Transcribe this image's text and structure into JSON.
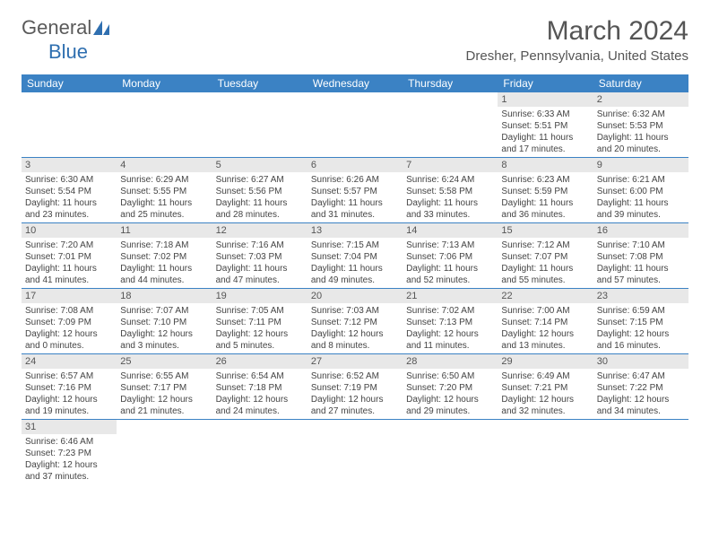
{
  "logo": {
    "text_dark": "General",
    "text_blue": "Blue"
  },
  "title": "March 2024",
  "location": "Dresher, Pennsylvania, United States",
  "colors": {
    "header_bg": "#3b82c4",
    "header_text": "#ffffff",
    "daynum_bg": "#e8e8e8",
    "border": "#3b82c4",
    "title_color": "#555555"
  },
  "day_names": [
    "Sunday",
    "Monday",
    "Tuesday",
    "Wednesday",
    "Thursday",
    "Friday",
    "Saturday"
  ],
  "weeks": [
    [
      null,
      null,
      null,
      null,
      null,
      {
        "n": "1",
        "sr": "Sunrise: 6:33 AM",
        "ss": "Sunset: 5:51 PM",
        "d1": "Daylight: 11 hours",
        "d2": "and 17 minutes."
      },
      {
        "n": "2",
        "sr": "Sunrise: 6:32 AM",
        "ss": "Sunset: 5:53 PM",
        "d1": "Daylight: 11 hours",
        "d2": "and 20 minutes."
      }
    ],
    [
      {
        "n": "3",
        "sr": "Sunrise: 6:30 AM",
        "ss": "Sunset: 5:54 PM",
        "d1": "Daylight: 11 hours",
        "d2": "and 23 minutes."
      },
      {
        "n": "4",
        "sr": "Sunrise: 6:29 AM",
        "ss": "Sunset: 5:55 PM",
        "d1": "Daylight: 11 hours",
        "d2": "and 25 minutes."
      },
      {
        "n": "5",
        "sr": "Sunrise: 6:27 AM",
        "ss": "Sunset: 5:56 PM",
        "d1": "Daylight: 11 hours",
        "d2": "and 28 minutes."
      },
      {
        "n": "6",
        "sr": "Sunrise: 6:26 AM",
        "ss": "Sunset: 5:57 PM",
        "d1": "Daylight: 11 hours",
        "d2": "and 31 minutes."
      },
      {
        "n": "7",
        "sr": "Sunrise: 6:24 AM",
        "ss": "Sunset: 5:58 PM",
        "d1": "Daylight: 11 hours",
        "d2": "and 33 minutes."
      },
      {
        "n": "8",
        "sr": "Sunrise: 6:23 AM",
        "ss": "Sunset: 5:59 PM",
        "d1": "Daylight: 11 hours",
        "d2": "and 36 minutes."
      },
      {
        "n": "9",
        "sr": "Sunrise: 6:21 AM",
        "ss": "Sunset: 6:00 PM",
        "d1": "Daylight: 11 hours",
        "d2": "and 39 minutes."
      }
    ],
    [
      {
        "n": "10",
        "sr": "Sunrise: 7:20 AM",
        "ss": "Sunset: 7:01 PM",
        "d1": "Daylight: 11 hours",
        "d2": "and 41 minutes."
      },
      {
        "n": "11",
        "sr": "Sunrise: 7:18 AM",
        "ss": "Sunset: 7:02 PM",
        "d1": "Daylight: 11 hours",
        "d2": "and 44 minutes."
      },
      {
        "n": "12",
        "sr": "Sunrise: 7:16 AM",
        "ss": "Sunset: 7:03 PM",
        "d1": "Daylight: 11 hours",
        "d2": "and 47 minutes."
      },
      {
        "n": "13",
        "sr": "Sunrise: 7:15 AM",
        "ss": "Sunset: 7:04 PM",
        "d1": "Daylight: 11 hours",
        "d2": "and 49 minutes."
      },
      {
        "n": "14",
        "sr": "Sunrise: 7:13 AM",
        "ss": "Sunset: 7:06 PM",
        "d1": "Daylight: 11 hours",
        "d2": "and 52 minutes."
      },
      {
        "n": "15",
        "sr": "Sunrise: 7:12 AM",
        "ss": "Sunset: 7:07 PM",
        "d1": "Daylight: 11 hours",
        "d2": "and 55 minutes."
      },
      {
        "n": "16",
        "sr": "Sunrise: 7:10 AM",
        "ss": "Sunset: 7:08 PM",
        "d1": "Daylight: 11 hours",
        "d2": "and 57 minutes."
      }
    ],
    [
      {
        "n": "17",
        "sr": "Sunrise: 7:08 AM",
        "ss": "Sunset: 7:09 PM",
        "d1": "Daylight: 12 hours",
        "d2": "and 0 minutes."
      },
      {
        "n": "18",
        "sr": "Sunrise: 7:07 AM",
        "ss": "Sunset: 7:10 PM",
        "d1": "Daylight: 12 hours",
        "d2": "and 3 minutes."
      },
      {
        "n": "19",
        "sr": "Sunrise: 7:05 AM",
        "ss": "Sunset: 7:11 PM",
        "d1": "Daylight: 12 hours",
        "d2": "and 5 minutes."
      },
      {
        "n": "20",
        "sr": "Sunrise: 7:03 AM",
        "ss": "Sunset: 7:12 PM",
        "d1": "Daylight: 12 hours",
        "d2": "and 8 minutes."
      },
      {
        "n": "21",
        "sr": "Sunrise: 7:02 AM",
        "ss": "Sunset: 7:13 PM",
        "d1": "Daylight: 12 hours",
        "d2": "and 11 minutes."
      },
      {
        "n": "22",
        "sr": "Sunrise: 7:00 AM",
        "ss": "Sunset: 7:14 PM",
        "d1": "Daylight: 12 hours",
        "d2": "and 13 minutes."
      },
      {
        "n": "23",
        "sr": "Sunrise: 6:59 AM",
        "ss": "Sunset: 7:15 PM",
        "d1": "Daylight: 12 hours",
        "d2": "and 16 minutes."
      }
    ],
    [
      {
        "n": "24",
        "sr": "Sunrise: 6:57 AM",
        "ss": "Sunset: 7:16 PM",
        "d1": "Daylight: 12 hours",
        "d2": "and 19 minutes."
      },
      {
        "n": "25",
        "sr": "Sunrise: 6:55 AM",
        "ss": "Sunset: 7:17 PM",
        "d1": "Daylight: 12 hours",
        "d2": "and 21 minutes."
      },
      {
        "n": "26",
        "sr": "Sunrise: 6:54 AM",
        "ss": "Sunset: 7:18 PM",
        "d1": "Daylight: 12 hours",
        "d2": "and 24 minutes."
      },
      {
        "n": "27",
        "sr": "Sunrise: 6:52 AM",
        "ss": "Sunset: 7:19 PM",
        "d1": "Daylight: 12 hours",
        "d2": "and 27 minutes."
      },
      {
        "n": "28",
        "sr": "Sunrise: 6:50 AM",
        "ss": "Sunset: 7:20 PM",
        "d1": "Daylight: 12 hours",
        "d2": "and 29 minutes."
      },
      {
        "n": "29",
        "sr": "Sunrise: 6:49 AM",
        "ss": "Sunset: 7:21 PM",
        "d1": "Daylight: 12 hours",
        "d2": "and 32 minutes."
      },
      {
        "n": "30",
        "sr": "Sunrise: 6:47 AM",
        "ss": "Sunset: 7:22 PM",
        "d1": "Daylight: 12 hours",
        "d2": "and 34 minutes."
      }
    ],
    [
      {
        "n": "31",
        "sr": "Sunrise: 6:46 AM",
        "ss": "Sunset: 7:23 PM",
        "d1": "Daylight: 12 hours",
        "d2": "and 37 minutes."
      },
      null,
      null,
      null,
      null,
      null,
      null
    ]
  ]
}
